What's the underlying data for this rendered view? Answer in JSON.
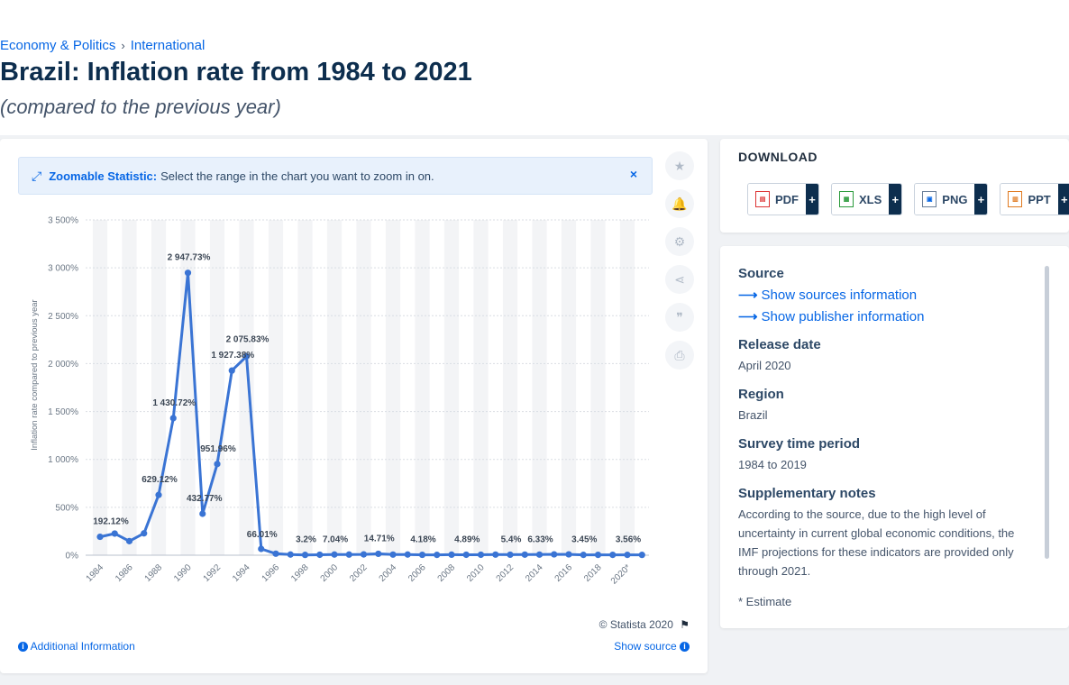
{
  "breadcrumb": {
    "items": [
      "Economy & Politics",
      "International"
    ],
    "separator": "›"
  },
  "page": {
    "title": "Brazil: Inflation rate from 1984 to 2021",
    "subtitle": "(compared to the previous year)"
  },
  "zoom_banner": {
    "label": "Zoomable Statistic:",
    "text": "Select the range in the chart you want to zoom in on.",
    "close": "×"
  },
  "tools": [
    {
      "name": "star-icon",
      "glyph": "★"
    },
    {
      "name": "bell-icon",
      "glyph": "🔔"
    },
    {
      "name": "gear-icon",
      "glyph": "⚙"
    },
    {
      "name": "share-icon",
      "glyph": "⋖"
    },
    {
      "name": "quote-icon",
      "glyph": "❞"
    },
    {
      "name": "print-icon",
      "glyph": "⎙"
    }
  ],
  "chart_footer": {
    "copyright": "© Statista 2020",
    "additional_info": "Additional Information",
    "show_source": "Show source"
  },
  "download": {
    "title": "DOWNLOAD",
    "buttons": [
      {
        "label": "PDF",
        "icon": "pdf-icon"
      },
      {
        "label": "XLS",
        "icon": "xls-icon"
      },
      {
        "label": "PNG",
        "icon": "png-icon"
      },
      {
        "label": "PPT",
        "icon": "ppt-icon"
      }
    ],
    "plus": "+"
  },
  "info": {
    "source_title": "Source",
    "show_sources": "Show sources information",
    "show_publisher": "Show publisher information",
    "release_title": "Release date",
    "release_value": "April 2020",
    "region_title": "Region",
    "region_value": "Brazil",
    "survey_title": "Survey time period",
    "survey_value": "1984 to 2019",
    "notes_title": "Supplementary notes",
    "notes_value": "According to the source, due to the high level of uncertainty in current global economic conditions, the IMF projections for these indicators are provided only through 2021.",
    "estimate_note": "* Estimate"
  },
  "chart_data": {
    "type": "line",
    "ylabel": "Inflation rate compared to previous year",
    "ylim": [
      0,
      3500
    ],
    "yticks": [
      0,
      500,
      1000,
      1500,
      2000,
      2500,
      3000,
      3500
    ],
    "ytick_labels": [
      "0%",
      "500%",
      "1 000%",
      "1 500%",
      "2 000%",
      "2 500%",
      "3 000%",
      "3 500%"
    ],
    "x": [
      1984,
      1985,
      1986,
      1987,
      1988,
      1989,
      1990,
      1991,
      1992,
      1993,
      1994,
      1995,
      1996,
      1997,
      1998,
      1999,
      2000,
      2001,
      2002,
      2003,
      2004,
      2005,
      2006,
      2007,
      2008,
      2009,
      2010,
      2011,
      2012,
      2013,
      2014,
      2015,
      2016,
      2017,
      2018,
      2019,
      2020,
      2021
    ],
    "xtick_labels": [
      "1984",
      "1986",
      "1988",
      "1990",
      "1992",
      "1994",
      "1996",
      "1998",
      "2000",
      "2002",
      "2004",
      "2006",
      "2008",
      "2010",
      "2012",
      "2014",
      "2016",
      "2018",
      "2020*"
    ],
    "series": [
      {
        "name": "",
        "color": "#3a74d4",
        "values": [
          192.12,
          226,
          147.1,
          228.3,
          629.12,
          1430.72,
          2947.73,
          432.77,
          951.96,
          1927.38,
          2075.83,
          66.01,
          15.8,
          6.9,
          3.2,
          4.9,
          7.04,
          6.8,
          8.5,
          14.71,
          6.6,
          6.9,
          4.18,
          3.6,
          5.7,
          4.89,
          5.0,
          6.6,
          5.4,
          6.2,
          6.33,
          9.0,
          8.7,
          3.45,
          3.7,
          3.7,
          3.56,
          3.3
        ]
      }
    ],
    "data_labels": [
      {
        "x": 1984,
        "text": "192.12%"
      },
      {
        "x": 1988,
        "text": "629.12%"
      },
      {
        "x": 1989,
        "text": "1 430.72%"
      },
      {
        "x": 1990,
        "text": "2 947.73%"
      },
      {
        "x": 1991,
        "text": "432.77%"
      },
      {
        "x": 1992,
        "text": "951.96%"
      },
      {
        "x": 1993,
        "text": "1 927.38%"
      },
      {
        "x": 1994,
        "text": "2 075.83%"
      },
      {
        "x": 1995,
        "text": "66.01%"
      },
      {
        "x": 1998,
        "text": "3.2%"
      },
      {
        "x": 2000,
        "text": "7.04%"
      },
      {
        "x": 2003,
        "text": "14.71%"
      },
      {
        "x": 2006,
        "text": "4.18%"
      },
      {
        "x": 2009,
        "text": "4.89%"
      },
      {
        "x": 2012,
        "text": "5.4%"
      },
      {
        "x": 2014,
        "text": "6.33%"
      },
      {
        "x": 2017,
        "text": "3.45%"
      },
      {
        "x": 2020,
        "text": "3.56%"
      }
    ],
    "grid": true,
    "legend": "none"
  }
}
